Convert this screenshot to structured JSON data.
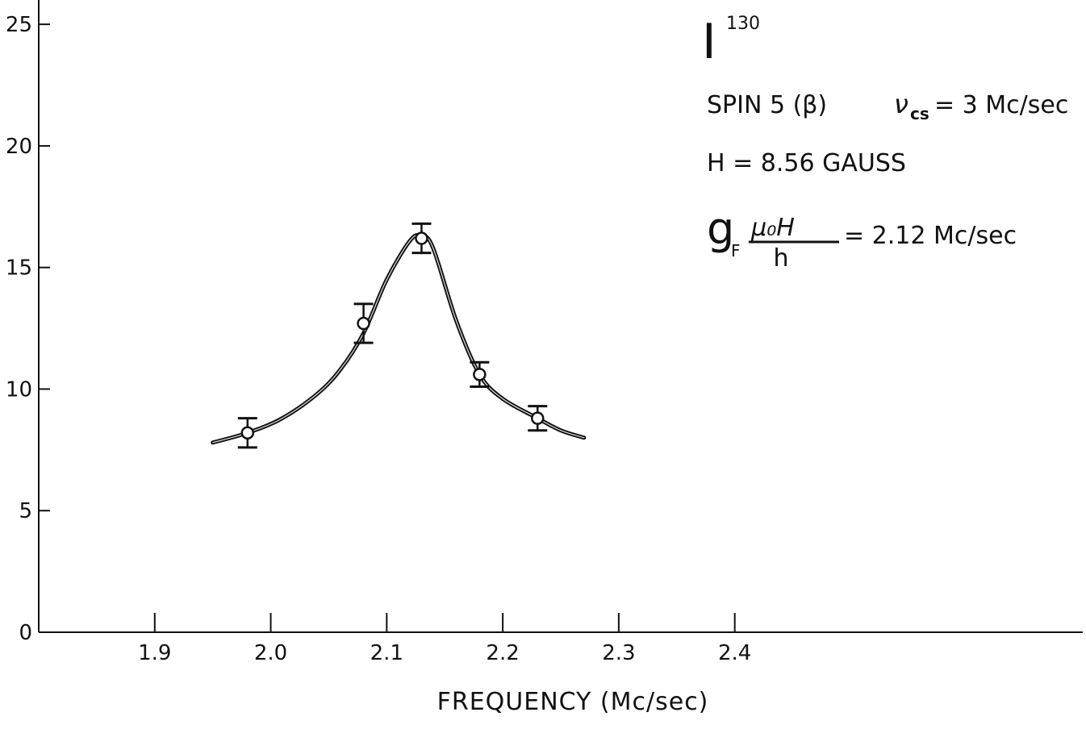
{
  "chart_data": {
    "type": "line",
    "xlabel": "FREQUENCY (Mc/sec)",
    "ylabel": "",
    "xlim": [
      1.8,
      2.7
    ],
    "ylim": [
      0,
      26
    ],
    "x_ticks": [
      "1.9",
      "2.0",
      "2.1",
      "2.2",
      "2.3",
      "2.4"
    ],
    "x_tick_values": [
      1.9,
      2.0,
      2.1,
      2.2,
      2.3,
      2.4
    ],
    "y_ticks": [
      "0",
      "5",
      "10",
      "15",
      "20",
      "25"
    ],
    "y_tick_values": [
      0,
      5,
      10,
      15,
      20,
      25
    ],
    "grid": false,
    "points": [
      {
        "x": 1.98,
        "y": 8.2,
        "err": 0.6
      },
      {
        "x": 2.08,
        "y": 12.7,
        "err": 0.8
      },
      {
        "x": 2.13,
        "y": 16.2,
        "err": 0.6
      },
      {
        "x": 2.18,
        "y": 10.6,
        "err": 0.5
      },
      {
        "x": 2.23,
        "y": 8.8,
        "err": 0.5
      }
    ],
    "fit_curve": {
      "x": [
        1.95,
        1.98,
        2.01,
        2.04,
        2.06,
        2.08,
        2.1,
        2.12,
        2.13,
        2.14,
        2.16,
        2.18,
        2.2,
        2.23,
        2.25,
        2.27
      ],
      "y": [
        7.8,
        8.2,
        8.8,
        9.8,
        10.8,
        12.3,
        14.5,
        16.1,
        16.3,
        15.8,
        12.8,
        10.6,
        9.6,
        8.8,
        8.3,
        8.0
      ]
    },
    "annotations": {
      "isotope_symbol": "I",
      "isotope_mass": "130",
      "spin_line_a": "SPIN 5 (β)",
      "nu_symbol": "ν",
      "nu_sub": "cs",
      "spin_line_b": "= 3 Mc/sec",
      "field_line": "H = 8.56 GAUSS",
      "g_symbol": "g",
      "g_sub": "F",
      "frac_num": "μ₀H",
      "frac_den": "h",
      "g_result": "= 2.12 Mc/sec"
    }
  }
}
